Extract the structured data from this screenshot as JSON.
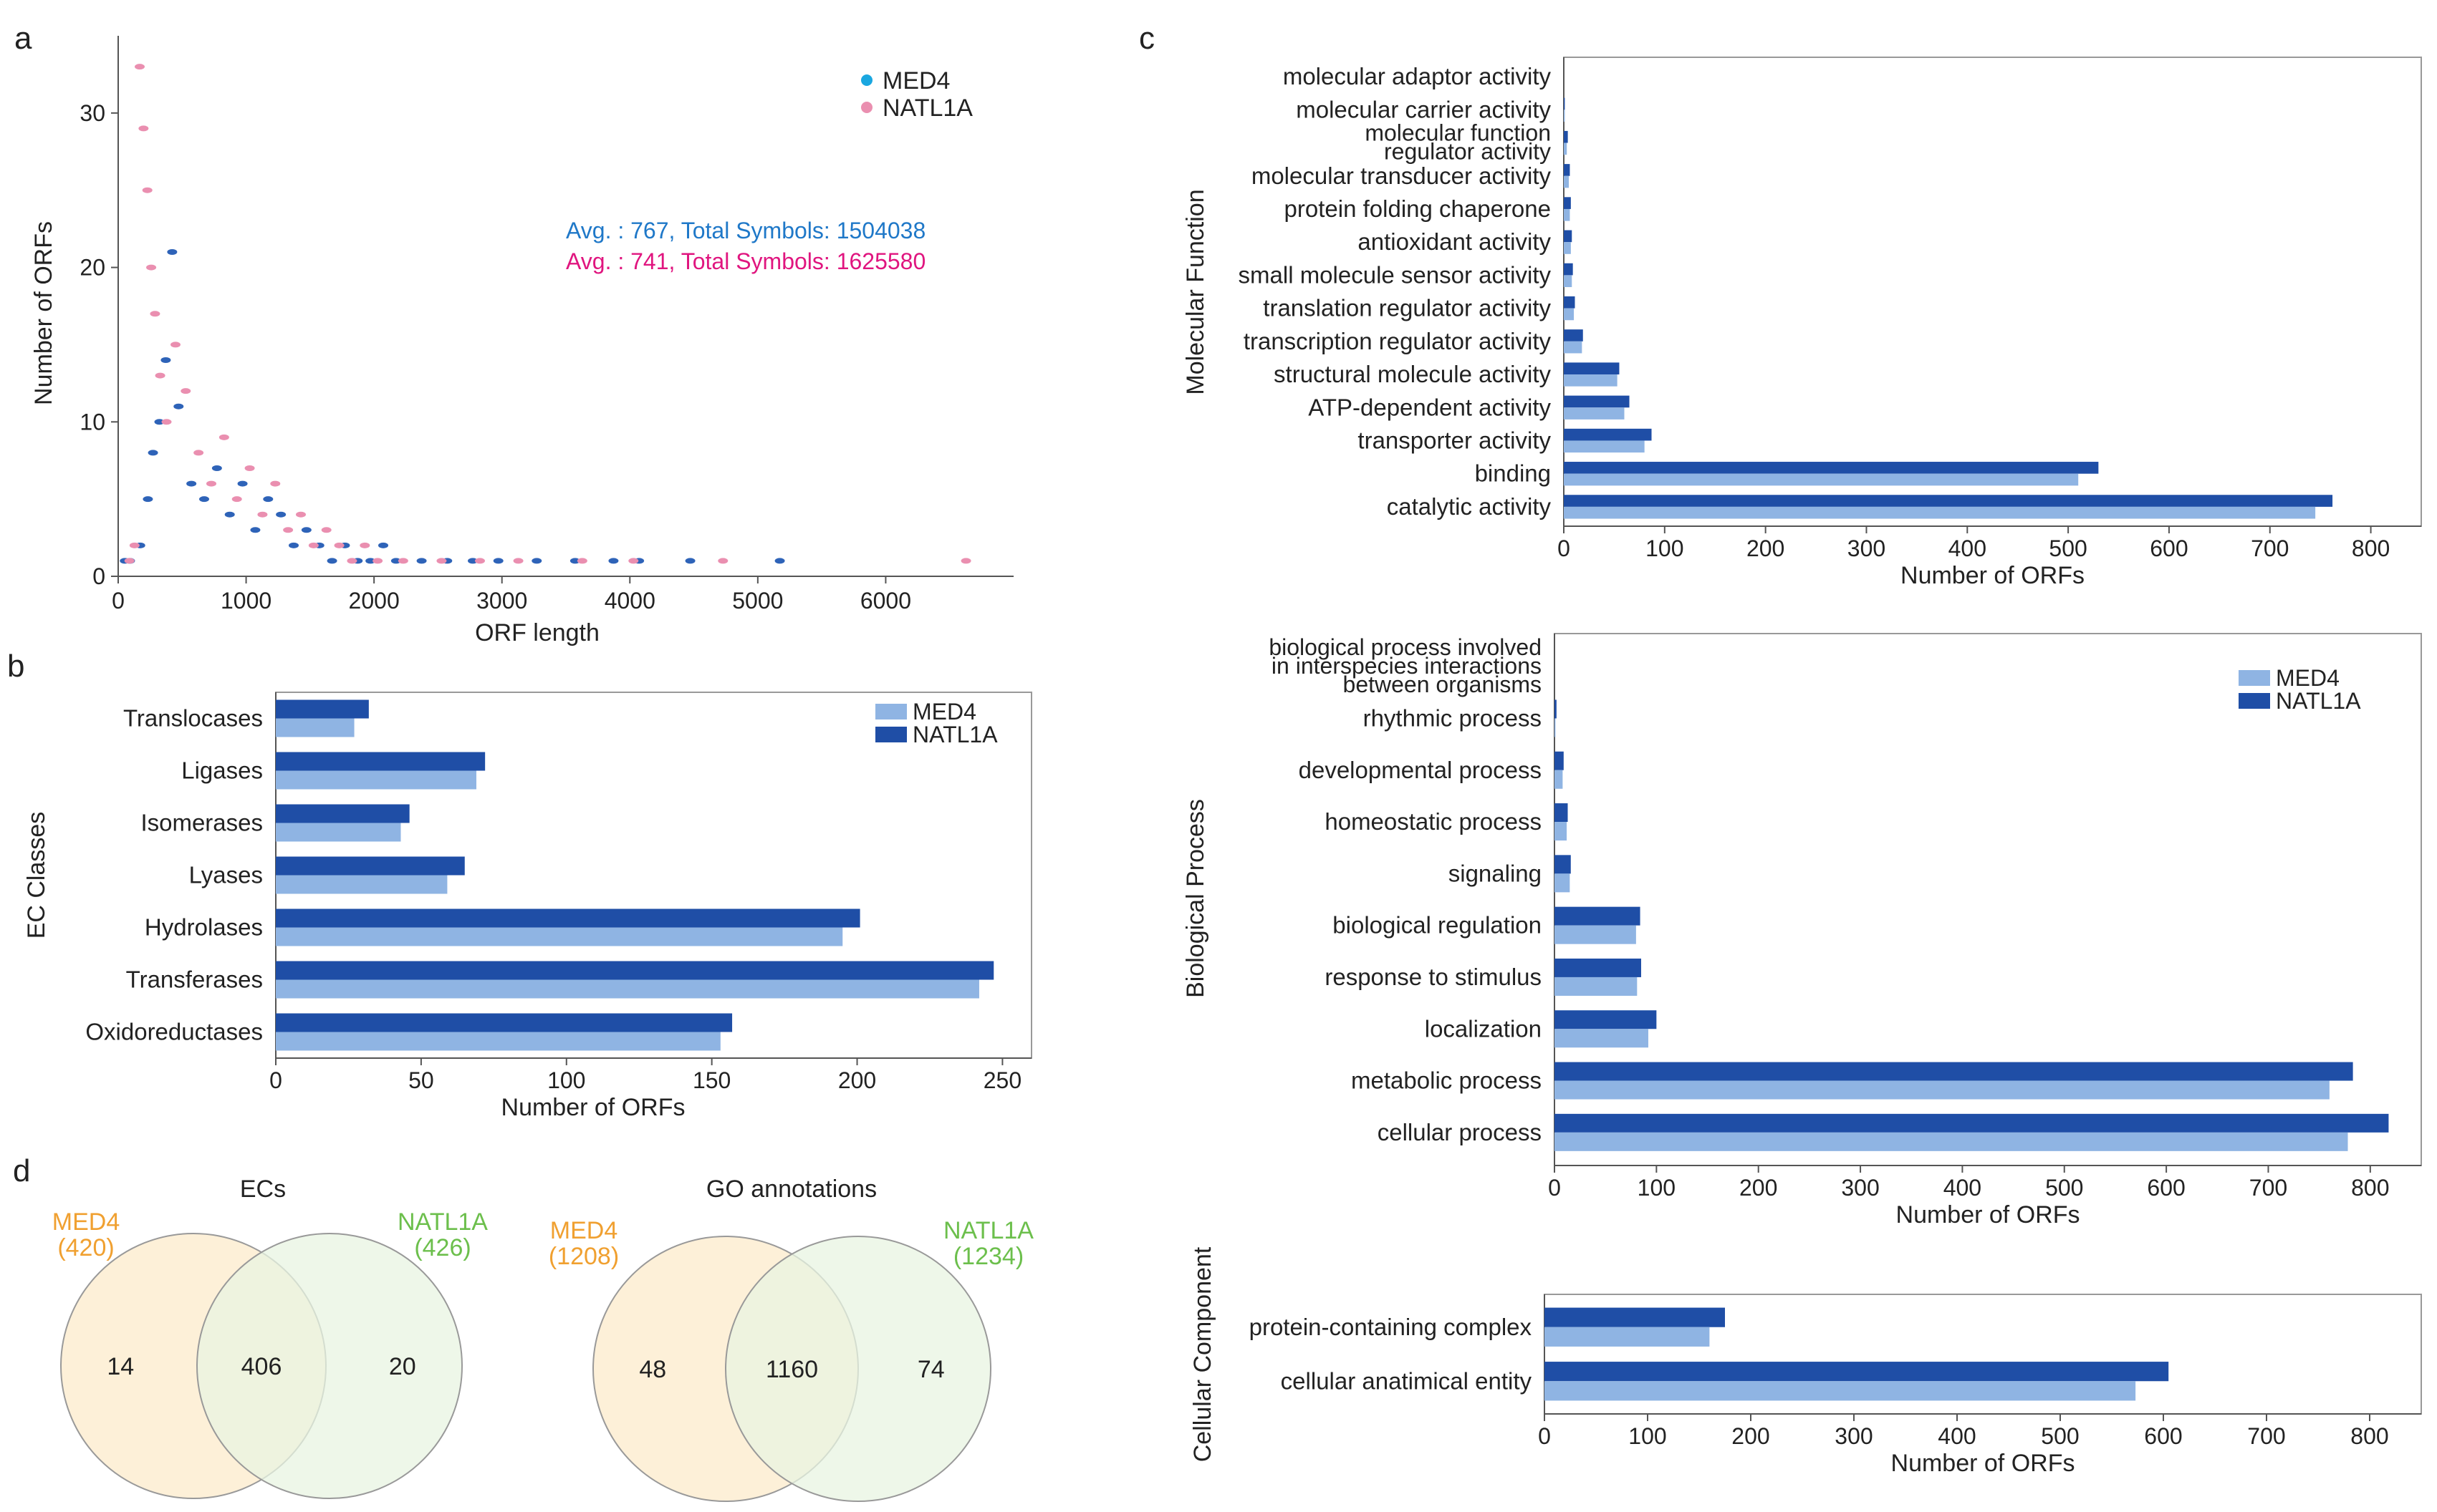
{
  "colors": {
    "med4_bar": "#8fb4e3",
    "natl1a_bar": "#1f4ea6",
    "med4_point": "#2e63b8",
    "natl1a_point": "#ea8fb0",
    "med4_text": "#1f78c8",
    "natl1a_text": "#e0157f",
    "venn_med4_fill": "#fdf0d8",
    "venn_natl1a_fill": "#e8f4e2",
    "venn_med4_label": "#f0a030",
    "venn_natl1a_label": "#6cbf4c",
    "axis": "#555555"
  },
  "chart_data": [
    {
      "panel": "a",
      "type": "scatter",
      "xlabel": "ORF length",
      "ylabel": "Number of ORFs",
      "xlim": [
        0,
        7000
      ],
      "ylim": [
        0,
        35
      ],
      "xticks": [
        0,
        1000,
        2000,
        3000,
        4000,
        5000,
        6000
      ],
      "yticks": [
        0,
        10,
        20,
        30
      ],
      "legend": [
        "MED4",
        "NATL1A"
      ],
      "annotations": [
        {
          "series": "MED4",
          "text": "Avg. : 767,  Total Symbols:  1504038"
        },
        {
          "series": "NATL1A",
          "text": "Avg. : 741,  Total Symbols:  1625580"
        }
      ],
      "series": [
        {
          "name": "MED4",
          "points": [
            [
              80,
              1
            ],
            [
              120,
              1
            ],
            [
              200,
              2
            ],
            [
              260,
              5
            ],
            [
              300,
              8
            ],
            [
              350,
              10
            ],
            [
              400,
              14
            ],
            [
              450,
              21
            ],
            [
              500,
              11
            ],
            [
              600,
              6
            ],
            [
              700,
              5
            ],
            [
              800,
              7
            ],
            [
              900,
              4
            ],
            [
              1000,
              6
            ],
            [
              1100,
              3
            ],
            [
              1200,
              5
            ],
            [
              1300,
              4
            ],
            [
              1400,
              2
            ],
            [
              1500,
              3
            ],
            [
              1600,
              2
            ],
            [
              1700,
              1
            ],
            [
              1800,
              2
            ],
            [
              1900,
              1
            ],
            [
              2000,
              1
            ],
            [
              2100,
              2
            ],
            [
              2200,
              1
            ],
            [
              2400,
              1
            ],
            [
              2600,
              1
            ],
            [
              2800,
              1
            ],
            [
              3000,
              1
            ],
            [
              3300,
              1
            ],
            [
              3600,
              1
            ],
            [
              3900,
              1
            ],
            [
              4100,
              1
            ],
            [
              4500,
              1
            ],
            [
              5200,
              1
            ]
          ]
        },
        {
          "name": "NATL1A",
          "points": [
            [
              60,
              1
            ],
            [
              100,
              2
            ],
            [
              140,
              33
            ],
            [
              170,
              29
            ],
            [
              200,
              25
            ],
            [
              230,
              20
            ],
            [
              260,
              17
            ],
            [
              300,
              13
            ],
            [
              350,
              10
            ],
            [
              420,
              15
            ],
            [
              500,
              12
            ],
            [
              600,
              8
            ],
            [
              700,
              6
            ],
            [
              800,
              9
            ],
            [
              900,
              5
            ],
            [
              1000,
              7
            ],
            [
              1100,
              4
            ],
            [
              1200,
              6
            ],
            [
              1300,
              3
            ],
            [
              1400,
              4
            ],
            [
              1500,
              2
            ],
            [
              1600,
              3
            ],
            [
              1700,
              2
            ],
            [
              1800,
              1
            ],
            [
              1900,
              2
            ],
            [
              2000,
              1
            ],
            [
              2200,
              1
            ],
            [
              2500,
              1
            ],
            [
              2800,
              1
            ],
            [
              3100,
              1
            ],
            [
              3600,
              1
            ],
            [
              4000,
              1
            ],
            [
              4700,
              1
            ],
            [
              6600,
              1
            ]
          ]
        }
      ]
    },
    {
      "panel": "b",
      "type": "bar",
      "orientation": "horizontal",
      "ylabel": "EC Classes",
      "xlabel": "Number of ORFs",
      "xlim": [
        0,
        260
      ],
      "xticks": [
        0,
        50,
        100,
        150,
        200,
        250
      ],
      "legend": [
        "MED4",
        "NATL1A"
      ],
      "categories": [
        "Translocases",
        "Ligases",
        "Isomerases",
        "Lyases",
        "Hydrolases",
        "Transferases",
        "Oxidoreductases"
      ],
      "series": [
        {
          "name": "MED4",
          "values": [
            27,
            69,
            43,
            59,
            195,
            242,
            153
          ]
        },
        {
          "name": "NATL1A",
          "values": [
            32,
            72,
            46,
            65,
            201,
            247,
            157
          ]
        }
      ]
    },
    {
      "panel": "c-mf",
      "type": "bar",
      "orientation": "horizontal",
      "ylabel": "Molecular Function",
      "xlabel": "Number of ORFs",
      "xlim": [
        0,
        850
      ],
      "xticks": [
        0,
        100,
        200,
        300,
        400,
        500,
        600,
        700,
        800
      ],
      "categories": [
        "molecular adaptor activity",
        "molecular carrier activity",
        "molecular function|regulator activity",
        "molecular transducer activity",
        "protein folding chaperone",
        "antioxidant activity",
        "small molecule sensor activity",
        "translation regulator activity",
        "transcription regulator activity",
        "structural molecule activity",
        "ATP-dependent activity",
        "transporter activity",
        "binding",
        "catalytic activity"
      ],
      "series": [
        {
          "name": "MED4",
          "values": [
            0,
            1,
            3,
            5,
            6,
            7,
            8,
            10,
            18,
            53,
            60,
            80,
            510,
            745
          ]
        },
        {
          "name": "NATL1A",
          "values": [
            0,
            1,
            4,
            6,
            7,
            8,
            9,
            11,
            19,
            55,
            65,
            87,
            530,
            762
          ]
        }
      ]
    },
    {
      "panel": "c-bp",
      "type": "bar",
      "orientation": "horizontal",
      "ylabel": "Biological Process",
      "xlabel": "Number of ORFs",
      "xlim": [
        0,
        850
      ],
      "xticks": [
        0,
        100,
        200,
        300,
        400,
        500,
        600,
        700,
        800
      ],
      "legend": [
        "MED4",
        "NATL1A"
      ],
      "categories": [
        "biological process involved|in interspecies interactions|between organisms",
        "rhythmic process",
        "developmental process",
        "homeostatic process",
        "signaling",
        "biological regulation",
        "response to stimulus",
        "localization",
        "metabolic process",
        "cellular process"
      ],
      "series": [
        {
          "name": "MED4",
          "values": [
            0,
            1,
            8,
            12,
            15,
            80,
            81,
            92,
            760,
            778
          ]
        },
        {
          "name": "NATL1A",
          "values": [
            0,
            2,
            9,
            13,
            16,
            84,
            85,
            100,
            783,
            818
          ]
        }
      ]
    },
    {
      "panel": "c-cc",
      "type": "bar",
      "orientation": "horizontal",
      "ylabel": "Cellular Component",
      "xlabel": "Number of ORFs",
      "xlim": [
        0,
        850
      ],
      "xticks": [
        0,
        100,
        200,
        300,
        400,
        500,
        600,
        700,
        800
      ],
      "categories": [
        "protein-containing complex",
        "cellular anatimical entity"
      ],
      "series": [
        {
          "name": "MED4",
          "values": [
            160,
            573
          ]
        },
        {
          "name": "NATL1A",
          "values": [
            175,
            605
          ]
        }
      ]
    },
    {
      "panel": "d-ec",
      "type": "venn",
      "title": "ECs",
      "sets": [
        {
          "name": "MED4",
          "total": "(420)",
          "only": 14
        },
        {
          "name": "NATL1A",
          "total": "(426)",
          "only": 20
        }
      ],
      "overlap": 406
    },
    {
      "panel": "d-go",
      "type": "venn",
      "title": "GO annotations",
      "sets": [
        {
          "name": "MED4",
          "total": "(1208)",
          "only": 48
        },
        {
          "name": "NATL1A",
          "total": "(1234)",
          "only": 74
        }
      ],
      "overlap": 1160
    }
  ],
  "panel_labels": [
    "a",
    "b",
    "c",
    "d"
  ]
}
